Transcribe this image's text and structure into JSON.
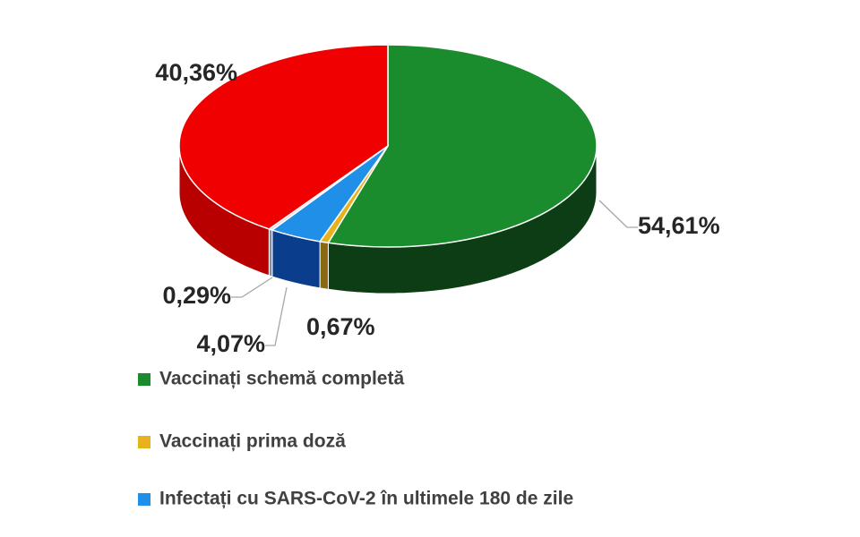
{
  "chart_data": {
    "type": "pie",
    "title": "",
    "style": "3d",
    "series": [
      {
        "name": "Vaccinați schemă completă",
        "value": 54.61,
        "label": "54,61%",
        "color": "#1a8c2e",
        "side_color": "#0d3d14"
      },
      {
        "name": "Vaccinați prima doză",
        "value": 0.67,
        "label": "0,67%",
        "color": "#e6b31e",
        "side_color": "#8a6a10"
      },
      {
        "name": "Infectați cu SARS-CoV-2 în ultimele 180 de zile",
        "value": 4.07,
        "label": "4,07%",
        "color": "#1f8fe8",
        "side_color": "#0a3d8c"
      },
      {
        "name": "",
        "value": 0.29,
        "label": "0,29%",
        "color": "#d9d9e0",
        "side_color": "#8c8ca0"
      },
      {
        "name": "",
        "value": 40.36,
        "label": "40,36%",
        "color": "#f00000",
        "side_color": "#b80000"
      }
    ],
    "legend": {
      "position": "bottom-left",
      "entries": [
        {
          "label": "Vaccinați schemă completă",
          "color": "#1a8c2e"
        },
        {
          "label": "Vaccinați prima doză",
          "color": "#e6b31e"
        },
        {
          "label": "Infectați cu SARS-CoV-2 în ultimele 180 de zile",
          "color": "#1f8fe8"
        }
      ]
    }
  }
}
